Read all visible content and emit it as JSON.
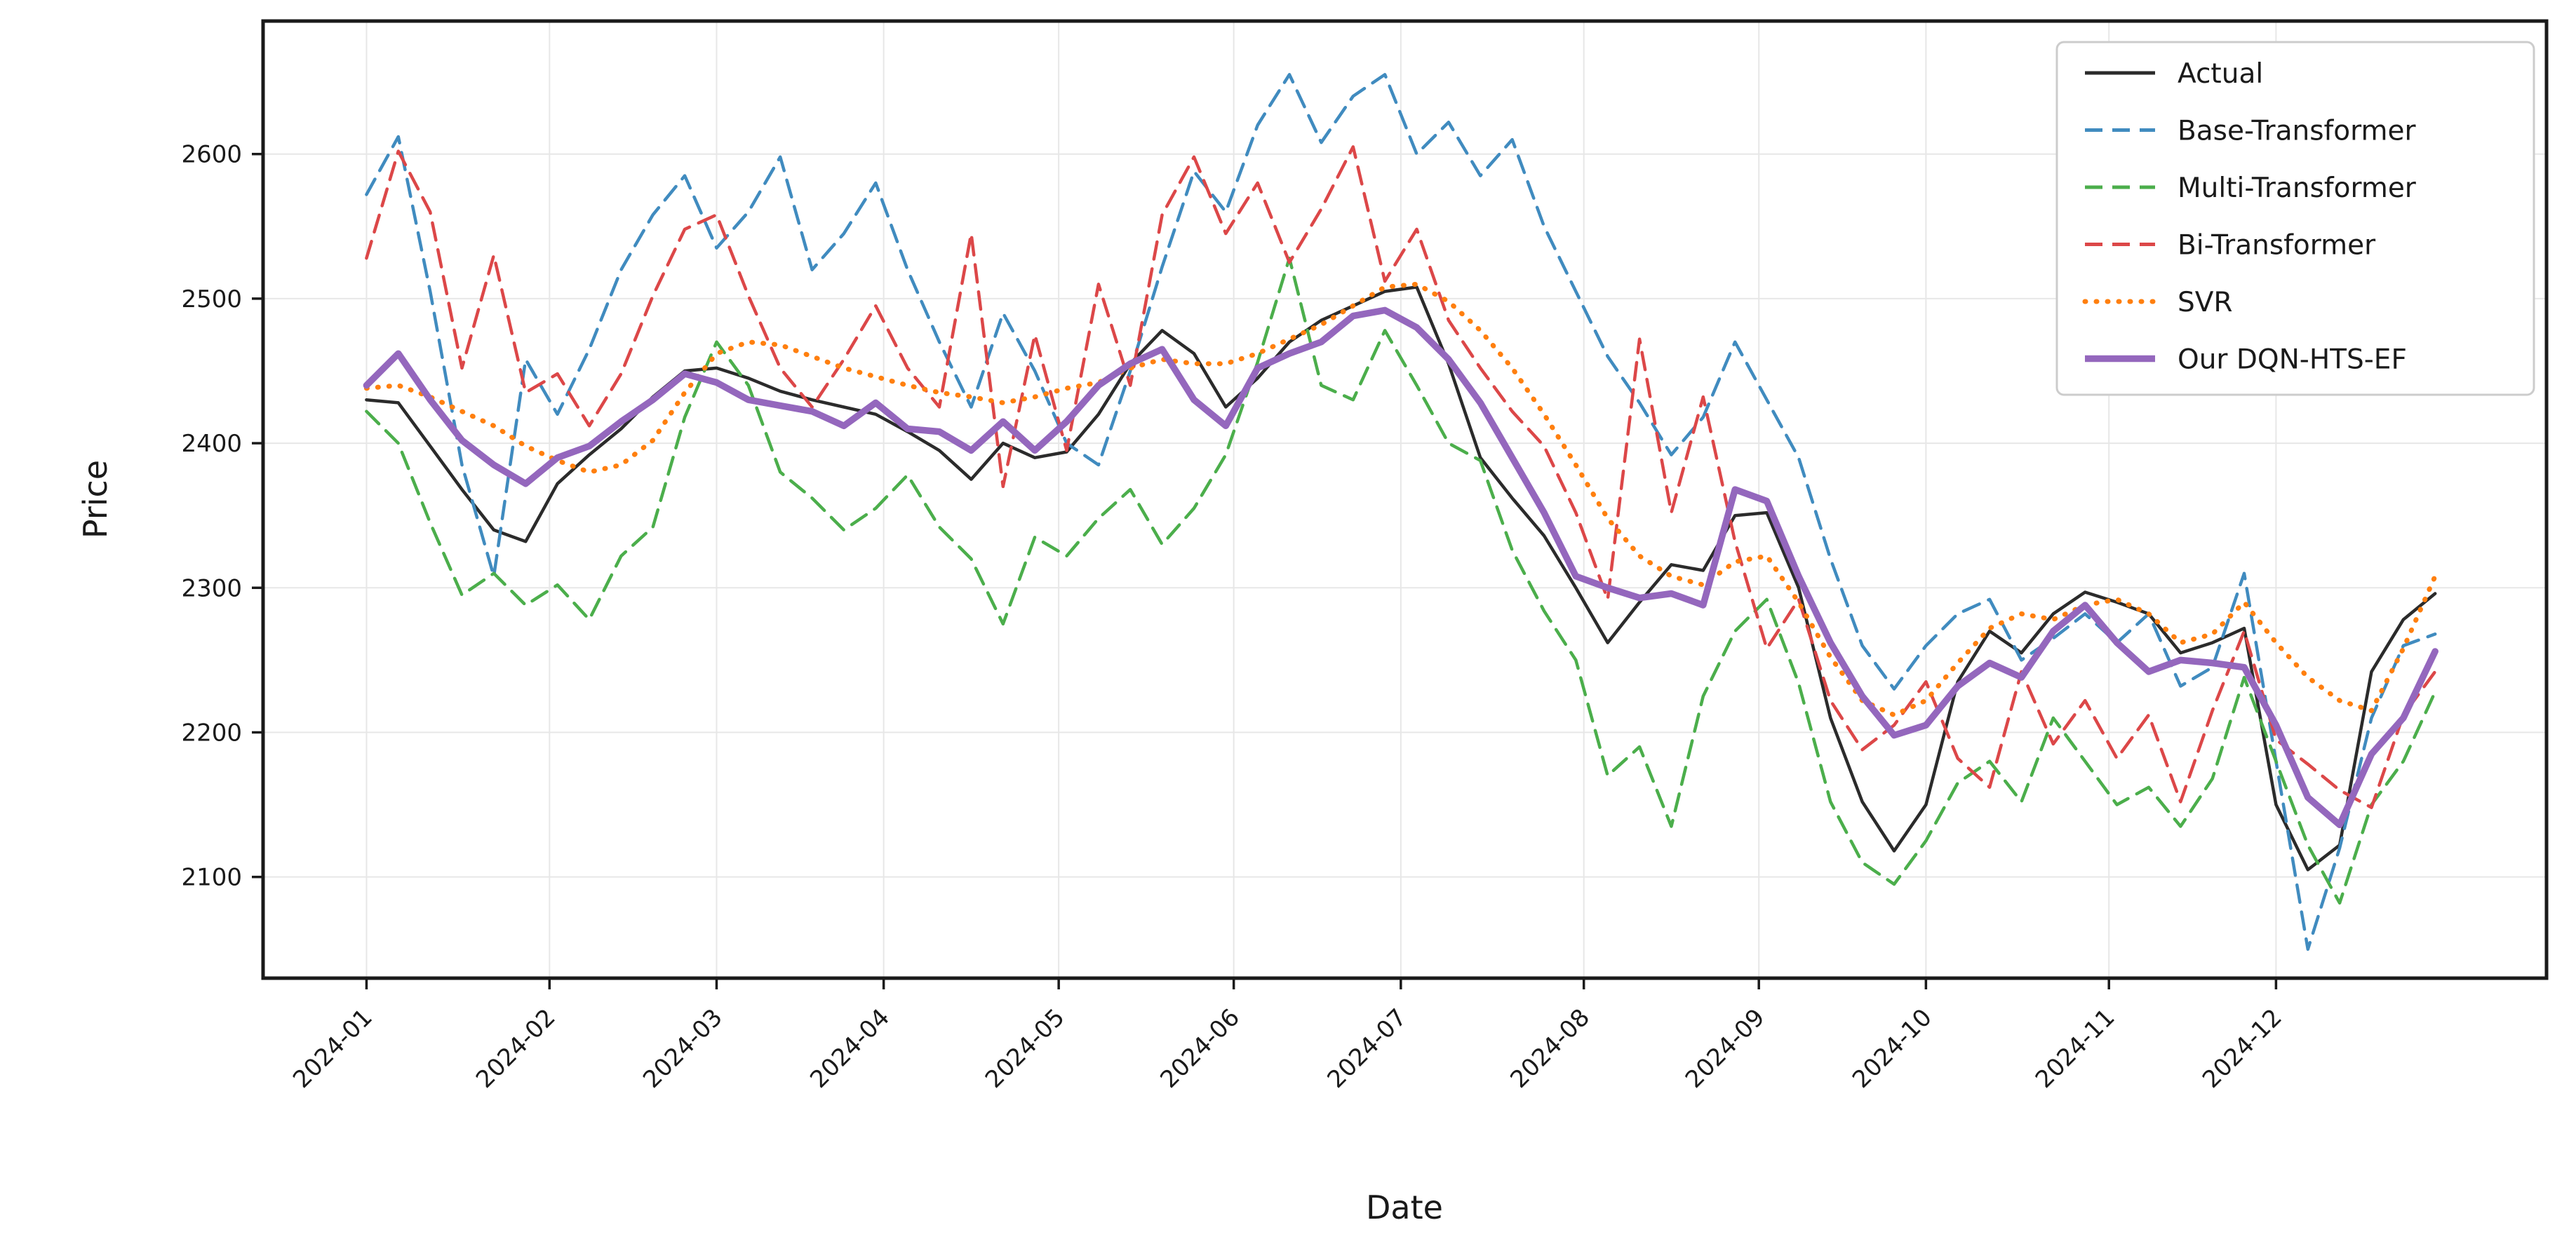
{
  "figure": {
    "xlabel": "Date",
    "ylabel": "Price",
    "background": "#ffffff",
    "grid_color": "#e7e7e7",
    "spine_color": "#1a1a1a"
  },
  "chart_data": {
    "type": "line",
    "title": "",
    "xlabel": "Date",
    "ylabel": "Price",
    "x_unit": "weekday index of year 2024 (0 = 2024-01-01)",
    "xlim": [
      -13,
      274
    ],
    "ylim": [
      2030,
      2692
    ],
    "grid": true,
    "legend_position": "upper right",
    "yticks": [
      2100,
      2200,
      2300,
      2400,
      2500,
      2600
    ],
    "xticks": [
      {
        "t": 0,
        "label": "2024-01"
      },
      {
        "t": 23,
        "label": "2024-02"
      },
      {
        "t": 44,
        "label": "2024-03"
      },
      {
        "t": 65,
        "label": "2024-04"
      },
      {
        "t": 87,
        "label": "2024-05"
      },
      {
        "t": 109,
        "label": "2024-06"
      },
      {
        "t": 130,
        "label": "2024-07"
      },
      {
        "t": 153,
        "label": "2024-08"
      },
      {
        "t": 175,
        "label": "2024-09"
      },
      {
        "t": 196,
        "label": "2024-10"
      },
      {
        "t": 219,
        "label": "2024-11"
      },
      {
        "t": 240,
        "label": "2024-12"
      }
    ],
    "t_grid_step": 4,
    "series": [
      {
        "name": "Actual",
        "color": "#2b2b2b",
        "dash": "solid",
        "width": 4.5,
        "values": [
          2430,
          2428,
          2398,
          2368,
          2340,
          2332,
          2372,
          2392,
          2410,
          2432,
          2450,
          2452,
          2445,
          2436,
          2430,
          2425,
          2420,
          2408,
          2395,
          2375,
          2400,
          2390,
          2394,
          2420,
          2455,
          2478,
          2462,
          2425,
          2445,
          2470,
          2485,
          2495,
          2505,
          2508,
          2455,
          2390,
          2362,
          2336,
          2300,
          2262,
          2290,
          2316,
          2312,
          2350,
          2352,
          2300,
          2210,
          2152,
          2118,
          2150,
          2235,
          2270,
          2255,
          2282,
          2297,
          2290,
          2282,
          2255,
          2262,
          2272,
          2150,
          2105,
          2122,
          2242,
          2278,
          2296
        ]
      },
      {
        "name": "Base-Transformer",
        "color": "#408bbf",
        "dash": "dashed",
        "width": 4.5,
        "values": [
          2572,
          2612,
          2505,
          2385,
          2308,
          2458,
          2420,
          2465,
          2520,
          2558,
          2585,
          2535,
          2560,
          2598,
          2520,
          2545,
          2580,
          2520,
          2470,
          2425,
          2490,
          2450,
          2400,
          2385,
          2450,
          2522,
          2588,
          2560,
          2620,
          2655,
          2608,
          2640,
          2655,
          2600,
          2622,
          2585,
          2610,
          2550,
          2505,
          2460,
          2428,
          2392,
          2418,
          2470,
          2430,
          2390,
          2320,
          2260,
          2230,
          2260,
          2282,
          2292,
          2250,
          2265,
          2282,
          2262,
          2282,
          2232,
          2245,
          2310,
          2180,
          2050,
          2120,
          2210,
          2260,
          2268
        ]
      },
      {
        "name": "Multi-Transformer",
        "color": "#4bae4b",
        "dash": "dashed",
        "width": 4.5,
        "values": [
          2422,
          2400,
          2345,
          2295,
          2310,
          2288,
          2302,
          2278,
          2322,
          2342,
          2418,
          2470,
          2440,
          2380,
          2362,
          2340,
          2355,
          2378,
          2342,
          2320,
          2275,
          2335,
          2322,
          2348,
          2368,
          2330,
          2355,
          2392,
          2456,
          2528,
          2440,
          2430,
          2478,
          2440,
          2400,
          2388,
          2326,
          2284,
          2250,
          2170,
          2190,
          2135,
          2225,
          2270,
          2292,
          2234,
          2152,
          2110,
          2095,
          2125,
          2165,
          2180,
          2152,
          2210,
          2180,
          2150,
          2162,
          2135,
          2168,
          2238,
          2180,
          2122,
          2082,
          2150,
          2180,
          2228
        ]
      },
      {
        "name": "Bi-Transformer",
        "color": "#dc4748",
        "dash": "dashed",
        "width": 4.5,
        "values": [
          2528,
          2602,
          2560,
          2452,
          2530,
          2435,
          2448,
          2412,
          2448,
          2502,
          2548,
          2558,
          2502,
          2452,
          2425,
          2458,
          2495,
          2452,
          2425,
          2545,
          2370,
          2475,
          2395,
          2510,
          2440,
          2558,
          2598,
          2545,
          2580,
          2525,
          2562,
          2605,
          2512,
          2548,
          2485,
          2452,
          2422,
          2398,
          2352,
          2292,
          2472,
          2352,
          2432,
          2332,
          2258,
          2292,
          2222,
          2188,
          2205,
          2235,
          2182,
          2162,
          2242,
          2192,
          2222,
          2182,
          2212,
          2152,
          2215,
          2270,
          2195,
          2178,
          2160,
          2148,
          2212,
          2242
        ]
      },
      {
        "name": "SVR",
        "color": "#ff7f0e",
        "dash": "dotted",
        "width": 7,
        "values": [
          2438,
          2440,
          2432,
          2422,
          2412,
          2398,
          2388,
          2380,
          2385,
          2402,
          2435,
          2462,
          2470,
          2468,
          2460,
          2452,
          2446,
          2440,
          2435,
          2432,
          2428,
          2432,
          2438,
          2442,
          2452,
          2458,
          2455,
          2455,
          2462,
          2472,
          2482,
          2495,
          2508,
          2510,
          2498,
          2478,
          2452,
          2420,
          2385,
          2348,
          2322,
          2308,
          2302,
          2318,
          2322,
          2290,
          2252,
          2222,
          2212,
          2222,
          2248,
          2272,
          2282,
          2278,
          2288,
          2292,
          2282,
          2262,
          2268,
          2290,
          2262,
          2238,
          2222,
          2215,
          2258,
          2308
        ]
      },
      {
        "name": "Our DQN-HTS-EF",
        "color": "#9467bd",
        "dash": "solid",
        "width": 9.5,
        "values": [
          2440,
          2462,
          2430,
          2402,
          2385,
          2372,
          2390,
          2398,
          2415,
          2430,
          2448,
          2442,
          2430,
          2426,
          2422,
          2412,
          2428,
          2410,
          2408,
          2395,
          2415,
          2395,
          2415,
          2440,
          2455,
          2465,
          2430,
          2412,
          2452,
          2462,
          2470,
          2488,
          2492,
          2480,
          2458,
          2428,
          2390,
          2352,
          2308,
          2300,
          2293,
          2296,
          2288,
          2368,
          2360,
          2308,
          2262,
          2225,
          2198,
          2205,
          2232,
          2248,
          2238,
          2270,
          2288,
          2262,
          2242,
          2250,
          2248,
          2245,
          2205,
          2155,
          2136,
          2185,
          2210,
          2256
        ]
      }
    ]
  }
}
